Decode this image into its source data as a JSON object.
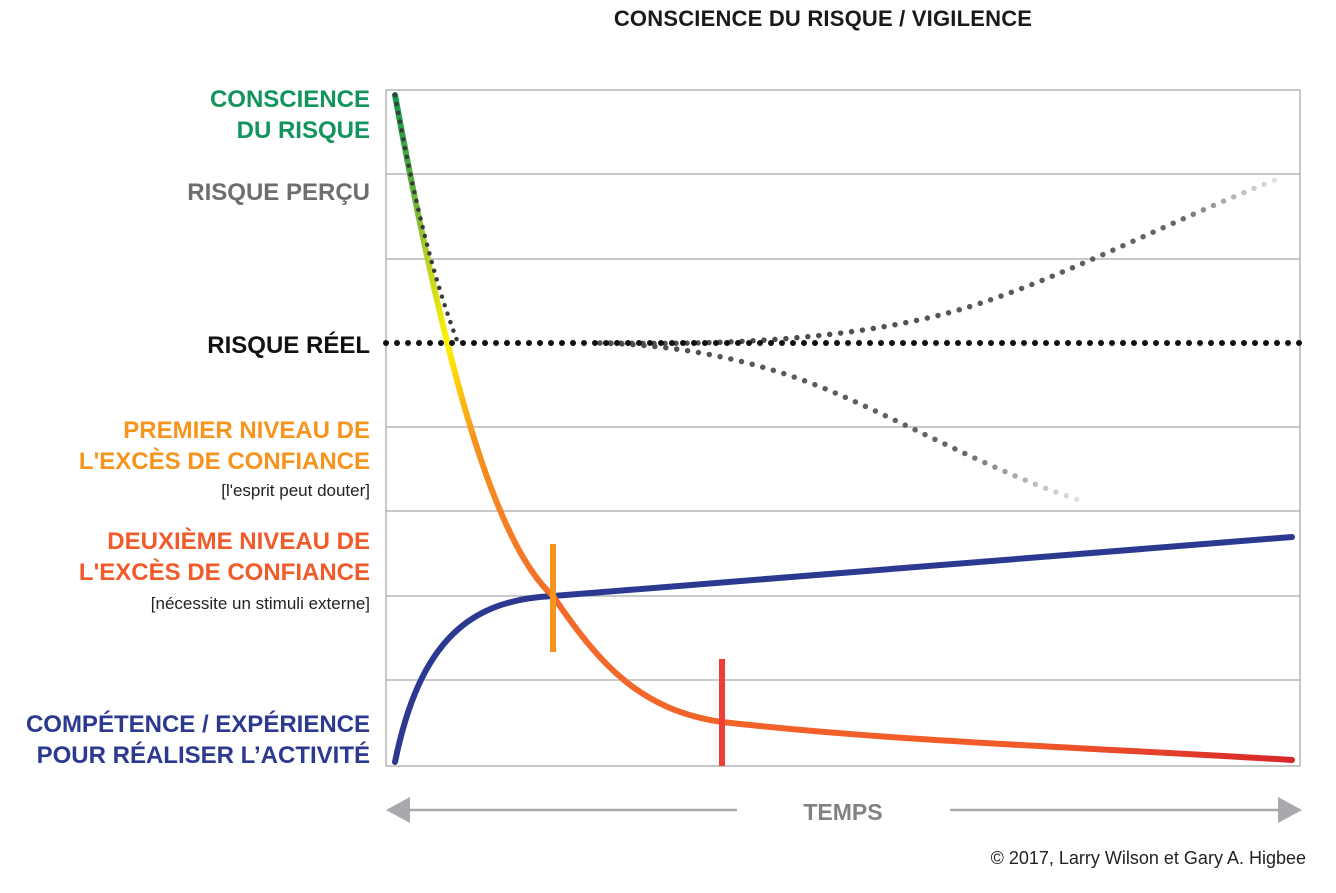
{
  "title": "CONSCIENCE DU RISQUE / VIGILENCE",
  "y_labels": {
    "awareness": [
      "CONSCIENCE",
      "DU RISQUE"
    ],
    "perceived": "RISQUE PERÇU",
    "real": "RISQUE RÉEL",
    "first_overconfidence": [
      "PREMIER NIVEAU DE",
      "L'EXCÈS DE CONFIANCE"
    ],
    "first_note": "[l'esprit peut douter]",
    "second_overconfidence": [
      "DEUXIÈME NIVEAU DE",
      "L'EXCÈS DE CONFIANCE"
    ],
    "second_note": "[nécessite un stimuli externe]",
    "competence": [
      "COMPÉTENCE / EXPÉRIENCE",
      "POUR RÉALISER L’ACTIVITÉ"
    ]
  },
  "x_axis_label": "TEMPS",
  "copyright": "© 2017, Larry Wilson et Gary A. Higbee",
  "colors": {
    "green": "#12945a",
    "grey": "#6d6e71",
    "black": "#111111",
    "orange": "#f7941d",
    "red": "#f15a29",
    "navy": "#2b3990"
  }
}
